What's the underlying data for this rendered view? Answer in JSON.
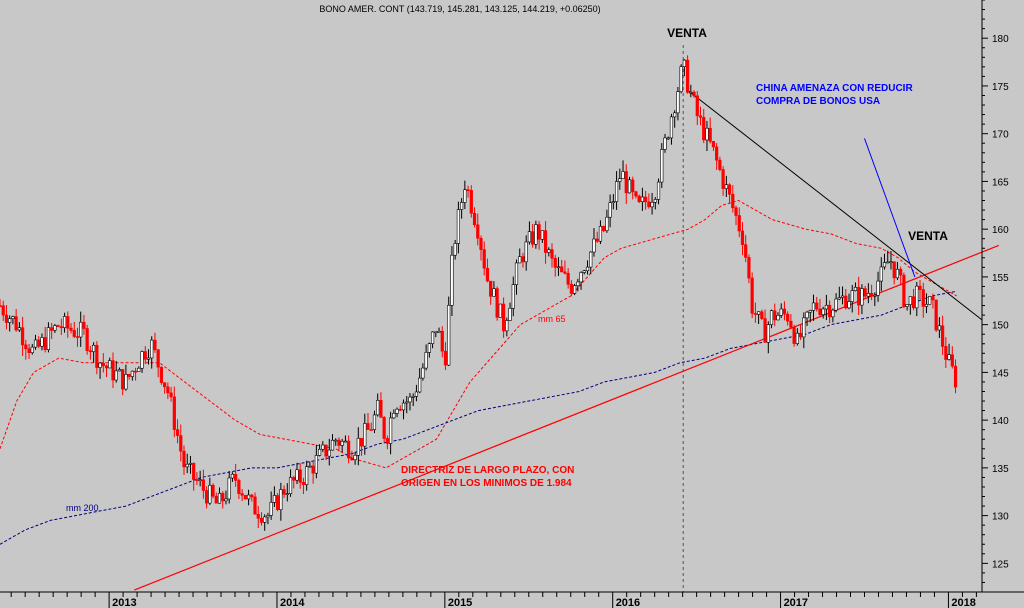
{
  "chart_data": {
    "type": "candlestick",
    "title": "BONO AMER. CONT (143.719, 145.281, 143.125, 144.219, +0.06250)",
    "ylim": [
      122,
      184
    ],
    "y_ticks": [
      125,
      130,
      135,
      140,
      145,
      150,
      155,
      160,
      165,
      170,
      175,
      180
    ],
    "xlim": [
      2012.35,
      2018.2
    ],
    "x_ticks": [
      {
        "value": 2013.0,
        "label": "2013"
      },
      {
        "value": 2014.0,
        "label": "2014"
      },
      {
        "value": 2015.0,
        "label": "2015"
      },
      {
        "value": 2016.0,
        "label": "2016"
      },
      {
        "value": 2017.0,
        "label": "2017"
      },
      {
        "value": 2018.0,
        "label": "2018"
      }
    ],
    "colors": {
      "up": "#000000",
      "down": "#ff0000",
      "ma65": "#ff0000",
      "ma200": "#000080",
      "trend": "#ff0000",
      "resistance": "#000000",
      "china_arrow": "#0000ff",
      "china_text": "#0000ff",
      "venta": "#000000",
      "directriz": "#ff0000"
    },
    "price_path": [
      [
        2012.35,
        152
      ],
      [
        2012.45,
        150
      ],
      [
        2012.55,
        147
      ],
      [
        2012.7,
        150
      ],
      [
        2012.85,
        149
      ],
      [
        2012.95,
        146
      ],
      [
        2013.1,
        144
      ],
      [
        2013.2,
        147
      ],
      [
        2013.25,
        148
      ],
      [
        2013.35,
        143
      ],
      [
        2013.45,
        135
      ],
      [
        2013.55,
        133
      ],
      [
        2013.65,
        131
      ],
      [
        2013.75,
        134
      ],
      [
        2013.85,
        131
      ],
      [
        2013.95,
        130
      ],
      [
        2014.05,
        133
      ],
      [
        2014.15,
        134
      ],
      [
        2014.25,
        136
      ],
      [
        2014.35,
        138
      ],
      [
        2014.45,
        137
      ],
      [
        2014.55,
        139
      ],
      [
        2014.6,
        141
      ],
      [
        2014.65,
        138
      ],
      [
        2014.7,
        142
      ],
      [
        2014.8,
        142
      ],
      [
        2014.9,
        147
      ],
      [
        2014.95,
        150
      ],
      [
        2015.0,
        146
      ],
      [
        2015.05,
        158
      ],
      [
        2015.12,
        165
      ],
      [
        2015.2,
        160
      ],
      [
        2015.25,
        155
      ],
      [
        2015.35,
        150
      ],
      [
        2015.45,
        157
      ],
      [
        2015.55,
        160
      ],
      [
        2015.65,
        156
      ],
      [
        2015.75,
        154
      ],
      [
        2015.85,
        157
      ],
      [
        2015.95,
        160
      ],
      [
        2016.05,
        166
      ],
      [
        2016.15,
        162
      ],
      [
        2016.25,
        164
      ],
      [
        2016.3,
        168
      ],
      [
        2016.35,
        172
      ],
      [
        2016.42,
        177
      ],
      [
        2016.5,
        172
      ],
      [
        2016.6,
        168
      ],
      [
        2016.7,
        163
      ],
      [
        2016.78,
        159
      ],
      [
        2016.83,
        152
      ],
      [
        2016.9,
        149
      ],
      [
        2016.95,
        151
      ],
      [
        2017.05,
        151
      ],
      [
        2017.1,
        148
      ],
      [
        2017.2,
        152
      ],
      [
        2017.3,
        152
      ],
      [
        2017.4,
        153
      ],
      [
        2017.5,
        153
      ],
      [
        2017.6,
        155
      ],
      [
        2017.65,
        157
      ],
      [
        2017.7,
        155
      ],
      [
        2017.75,
        152
      ],
      [
        2017.8,
        153
      ],
      [
        2017.9,
        152
      ],
      [
        2018.0,
        146
      ],
      [
        2018.05,
        144
      ]
    ],
    "ma65": [
      [
        2012.35,
        137
      ],
      [
        2012.45,
        142
      ],
      [
        2012.55,
        145
      ],
      [
        2012.7,
        146.5
      ],
      [
        2012.85,
        146
      ],
      [
        2013.0,
        146
      ],
      [
        2013.15,
        146
      ],
      [
        2013.3,
        146
      ],
      [
        2013.45,
        144
      ],
      [
        2013.6,
        142
      ],
      [
        2013.75,
        140
      ],
      [
        2013.9,
        138.5
      ],
      [
        2014.05,
        138
      ],
      [
        2014.2,
        137.5
      ],
      [
        2014.35,
        137
      ],
      [
        2014.45,
        136
      ],
      [
        2014.55,
        135.5
      ],
      [
        2014.65,
        135
      ],
      [
        2014.75,
        136
      ],
      [
        2014.85,
        137
      ],
      [
        2014.95,
        138
      ],
      [
        2015.05,
        141
      ],
      [
        2015.15,
        144
      ],
      [
        2015.25,
        146
      ],
      [
        2015.35,
        148
      ],
      [
        2015.45,
        150
      ],
      [
        2015.55,
        151
      ],
      [
        2015.65,
        152
      ],
      [
        2015.75,
        153
      ],
      [
        2015.85,
        155
      ],
      [
        2015.95,
        157
      ],
      [
        2016.05,
        158
      ],
      [
        2016.15,
        158.5
      ],
      [
        2016.25,
        159
      ],
      [
        2016.35,
        159.5
      ],
      [
        2016.45,
        160
      ],
      [
        2016.55,
        161
      ],
      [
        2016.65,
        162.5
      ],
      [
        2016.75,
        163
      ],
      [
        2016.85,
        162
      ],
      [
        2016.95,
        161
      ],
      [
        2017.05,
        160.5
      ],
      [
        2017.15,
        160
      ],
      [
        2017.3,
        159.5
      ],
      [
        2017.45,
        158.5
      ],
      [
        2017.6,
        158
      ],
      [
        2017.7,
        157
      ],
      [
        2017.8,
        155.5
      ],
      [
        2017.9,
        154.5
      ],
      [
        2018.0,
        153.5
      ],
      [
        2018.05,
        153
      ]
    ],
    "ma200": [
      [
        2012.35,
        127
      ],
      [
        2012.5,
        128.5
      ],
      [
        2012.65,
        129.5
      ],
      [
        2012.8,
        130
      ],
      [
        2012.95,
        130.5
      ],
      [
        2013.1,
        131
      ],
      [
        2013.25,
        132
      ],
      [
        2013.4,
        133
      ],
      [
        2013.55,
        134
      ],
      [
        2013.7,
        134.5
      ],
      [
        2013.85,
        135
      ],
      [
        2014.0,
        135
      ],
      [
        2014.15,
        135.5
      ],
      [
        2014.3,
        136
      ],
      [
        2014.45,
        136.5
      ],
      [
        2014.6,
        137.5
      ],
      [
        2014.75,
        138
      ],
      [
        2014.9,
        139
      ],
      [
        2015.05,
        140
      ],
      [
        2015.2,
        141
      ],
      [
        2015.35,
        141.5
      ],
      [
        2015.5,
        142
      ],
      [
        2015.65,
        142.5
      ],
      [
        2015.8,
        143
      ],
      [
        2015.95,
        144
      ],
      [
        2016.1,
        144.5
      ],
      [
        2016.25,
        145
      ],
      [
        2016.4,
        146
      ],
      [
        2016.55,
        146.5
      ],
      [
        2016.7,
        147.5
      ],
      [
        2016.85,
        148
      ],
      [
        2017.0,
        148.5
      ],
      [
        2017.15,
        149
      ],
      [
        2017.3,
        150
      ],
      [
        2017.45,
        150.5
      ],
      [
        2017.6,
        151
      ],
      [
        2017.75,
        152
      ],
      [
        2017.9,
        153
      ],
      [
        2018.05,
        153.5
      ]
    ],
    "lines": {
      "directriz": {
        "from": [
          2013.15,
          122.2
        ],
        "to": [
          2018.3,
          158.3
        ]
      },
      "resistance": {
        "from": [
          2016.45,
          174.5
        ],
        "to": [
          2018.2,
          150.5
        ]
      },
      "china_arrow": {
        "from": [
          2017.5,
          169.5
        ],
        "to": [
          2017.8,
          155
        ]
      },
      "vline_x": 2016.42
    },
    "ma_labels": {
      "mm65": "mm 65",
      "mm200": "mm 200"
    },
    "annotations": {
      "venta_top": "VENTA",
      "venta_right": "VENTA",
      "china_line1": "CHINA AMENAZA CON REDUCIR",
      "china_line2": "COMPRA DE BONOS USA",
      "directriz_line1": "DIRECTRIZ DE LARGO PLAZO, CON",
      "directriz_line2": "ORIGEN EN LOS MINIMOS DE 1.984"
    }
  }
}
